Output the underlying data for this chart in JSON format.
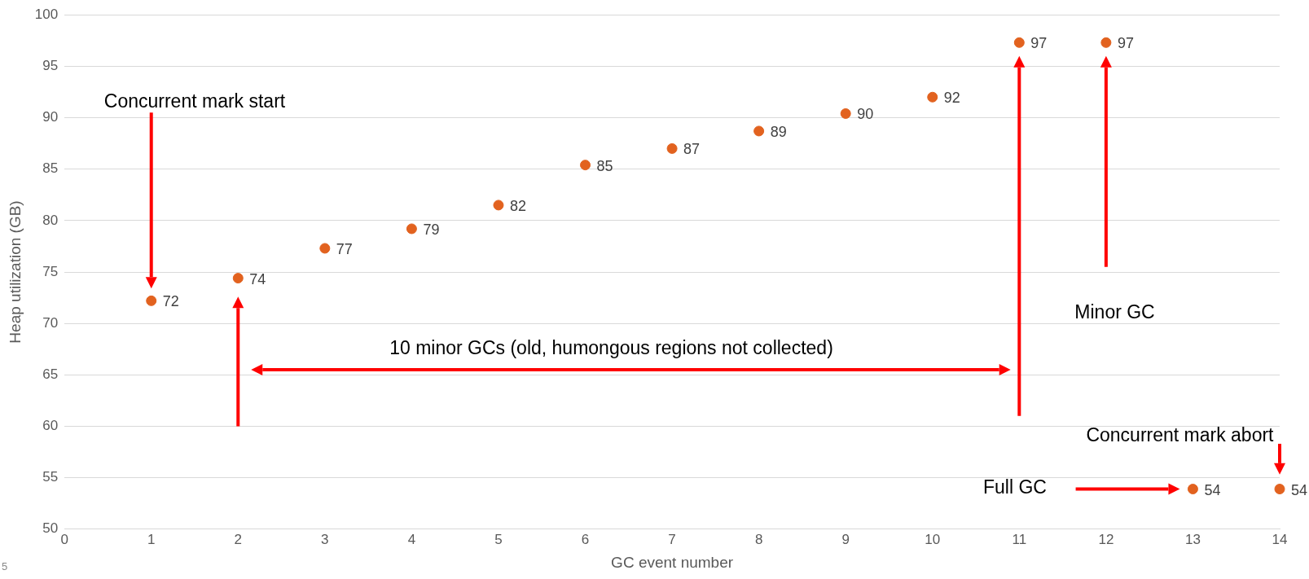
{
  "chart_data": {
    "type": "scatter",
    "xlabel": "GC event number",
    "ylabel": "Heap utilization (GB)",
    "x": [
      1,
      2,
      3,
      4,
      5,
      6,
      7,
      8,
      9,
      10,
      11,
      12,
      13,
      14
    ],
    "series": [
      {
        "color": "#e2621f",
        "values": [
          72.2,
          74.4,
          77.3,
          79.2,
          81.5,
          85.4,
          87,
          88.7,
          90.4,
          92,
          97.3,
          97.3,
          53.9,
          53.9
        ],
        "value_labels": [
          "72",
          "74",
          "77",
          "79",
          "82",
          "85",
          "87",
          "89",
          "90",
          "92",
          "97",
          "97",
          "54",
          "54"
        ]
      }
    ],
    "xlim": [
      0,
      14
    ],
    "xticks": [
      0,
      1,
      2,
      3,
      4,
      5,
      6,
      7,
      8,
      9,
      10,
      11,
      12,
      13,
      14
    ],
    "ylim": [
      50,
      100
    ],
    "yticks": [
      50,
      55,
      60,
      65,
      70,
      75,
      80,
      85,
      90,
      95,
      100
    ],
    "grid": "y",
    "legend": false,
    "marker": "circle",
    "annotations": [
      "Concurrent mark start",
      "10 minor GCs (old, humongous regions not collected)",
      "Minor GC",
      "Concurrent mark abort",
      "Full GC",
      "5"
    ]
  }
}
